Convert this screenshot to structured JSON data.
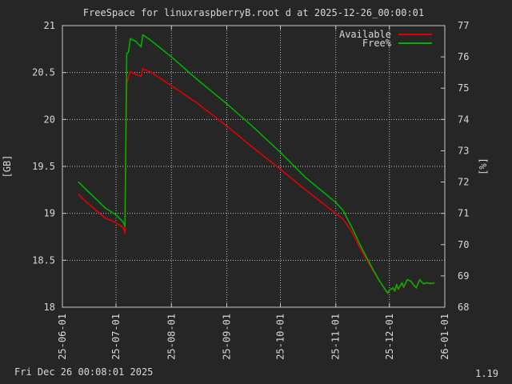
{
  "chart_data": {
    "type": "line",
    "title": "FreeSpace for linuxraspberryB.root d at 2025-12-26_00:00:01",
    "ylabel": "[GB]",
    "y2label": "[%]",
    "xlim": [
      "2025-06-01",
      "2026-01-01"
    ],
    "ylim": [
      18,
      21
    ],
    "y2lim": [
      68,
      77
    ],
    "x_ticks": [
      "25-06-01",
      "25-07-01",
      "25-08-01",
      "25-09-01",
      "25-10-01",
      "25-11-01",
      "25-12-01",
      "26-01-01"
    ],
    "y_ticks": [
      "18",
      "18.5",
      "19",
      "19.5",
      "20",
      "20.5",
      "21"
    ],
    "y2_ticks": [
      "68",
      "69",
      "70",
      "71",
      "72",
      "73",
      "74",
      "75",
      "76",
      "77"
    ],
    "grid": true,
    "legend_position": "top-right",
    "series": [
      {
        "name": "Available",
        "axis": "y",
        "color": "#e00000",
        "points": [
          [
            "2025-06-10",
            19.2
          ],
          [
            "2025-06-15",
            19.11
          ],
          [
            "2025-06-20",
            19.03
          ],
          [
            "2025-06-25",
            18.95
          ],
          [
            "2025-07-01",
            18.9
          ],
          [
            "2025-07-05",
            18.85
          ],
          [
            "2025-07-06",
            18.79
          ],
          [
            "2025-07-07",
            20.38
          ],
          [
            "2025-07-08",
            20.45
          ],
          [
            "2025-07-09",
            20.51
          ],
          [
            "2025-07-12",
            20.48
          ],
          [
            "2025-07-15",
            20.46
          ],
          [
            "2025-07-16",
            20.54
          ],
          [
            "2025-07-20",
            20.51
          ],
          [
            "2025-08-01",
            20.36
          ],
          [
            "2025-08-15",
            20.18
          ],
          [
            "2025-09-01",
            19.93
          ],
          [
            "2025-09-15",
            19.71
          ],
          [
            "2025-10-01",
            19.47
          ],
          [
            "2025-10-15",
            19.25
          ],
          [
            "2025-11-01",
            19.0
          ],
          [
            "2025-11-05",
            18.94
          ],
          [
            "2025-11-10",
            18.8
          ],
          [
            "2025-11-15",
            18.62
          ],
          [
            "2025-11-20",
            18.45
          ],
          [
            "2025-11-25",
            18.29
          ],
          [
            "2025-11-30",
            18.15
          ],
          [
            "2025-12-01",
            18.18
          ],
          [
            "2025-12-03",
            18.2
          ],
          [
            "2025-12-04",
            18.17
          ],
          [
            "2025-12-05",
            18.23
          ],
          [
            "2025-12-06",
            18.19
          ],
          [
            "2025-12-08",
            18.25
          ],
          [
            "2025-12-09",
            18.21
          ],
          [
            "2025-12-11",
            18.29
          ],
          [
            "2025-12-13",
            18.28
          ],
          [
            "2025-12-15",
            18.23
          ],
          [
            "2025-12-16",
            18.21
          ],
          [
            "2025-12-18",
            18.29
          ],
          [
            "2025-12-20",
            18.25
          ],
          [
            "2025-12-22",
            18.26
          ],
          [
            "2025-12-24",
            18.25
          ],
          [
            "2025-12-26",
            18.26
          ]
        ]
      },
      {
        "name": "Free%",
        "axis": "y2",
        "color": "#00b000",
        "points": [
          [
            "2025-06-10",
            72.0
          ],
          [
            "2025-06-15",
            71.72
          ],
          [
            "2025-06-20",
            71.45
          ],
          [
            "2025-06-25",
            71.17
          ],
          [
            "2025-07-01",
            70.95
          ],
          [
            "2025-07-05",
            70.72
          ],
          [
            "2025-07-06",
            70.59
          ],
          [
            "2025-07-07",
            76.1
          ],
          [
            "2025-07-08",
            76.15
          ],
          [
            "2025-07-09",
            76.58
          ],
          [
            "2025-07-12",
            76.5
          ],
          [
            "2025-07-15",
            76.32
          ],
          [
            "2025-07-16",
            76.7
          ],
          [
            "2025-07-20",
            76.55
          ],
          [
            "2025-08-01",
            76.0
          ],
          [
            "2025-08-15",
            75.3
          ],
          [
            "2025-09-01",
            74.5
          ],
          [
            "2025-09-15",
            73.8
          ],
          [
            "2025-10-01",
            72.95
          ],
          [
            "2025-10-15",
            72.15
          ],
          [
            "2025-11-01",
            71.35
          ],
          [
            "2025-11-05",
            71.1
          ],
          [
            "2025-11-10",
            70.55
          ],
          [
            "2025-11-15",
            69.95
          ],
          [
            "2025-11-20",
            69.4
          ],
          [
            "2025-11-25",
            68.88
          ],
          [
            "2025-11-30",
            68.45
          ],
          [
            "2025-12-01",
            68.55
          ],
          [
            "2025-12-03",
            68.62
          ],
          [
            "2025-12-04",
            68.52
          ],
          [
            "2025-12-05",
            68.73
          ],
          [
            "2025-12-06",
            68.58
          ],
          [
            "2025-12-08",
            68.78
          ],
          [
            "2025-12-09",
            68.65
          ],
          [
            "2025-12-11",
            68.88
          ],
          [
            "2025-12-13",
            68.83
          ],
          [
            "2025-12-15",
            68.68
          ],
          [
            "2025-12-16",
            68.62
          ],
          [
            "2025-12-18",
            68.88
          ],
          [
            "2025-12-20",
            68.75
          ],
          [
            "2025-12-22",
            68.78
          ],
          [
            "2025-12-24",
            68.76
          ],
          [
            "2025-12-26",
            68.77
          ]
        ]
      }
    ]
  },
  "footer": {
    "timestamp": "Fri Dec 26 00:08:01 2025",
    "version": "1.19"
  }
}
